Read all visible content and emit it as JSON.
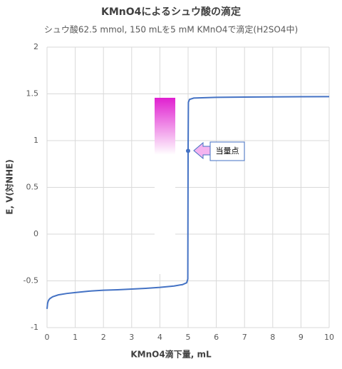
{
  "chart_data": {
    "type": "line",
    "title": "KMnO4によるシュウ酸の滴定",
    "subtitle": "シュウ酸62.5 mmol, 150 mLを5 mM KMnO4で滴定(H2SO4中)",
    "x_label": "KMnO4滴下量, mL",
    "y_label": "E, V(対NHE)",
    "x": [
      0,
      0.02,
      0.05,
      0.1,
      0.2,
      0.4,
      0.7,
      1,
      1.5,
      2,
      2.5,
      3,
      3.5,
      4,
      4.5,
      4.8,
      4.95,
      4.99,
      5,
      5.01,
      5.05,
      5.2,
      6,
      7,
      8,
      9,
      10
    ],
    "series": [
      {
        "color": "#4472c4",
        "values": [
          -0.8,
          -0.74,
          -0.71,
          -0.69,
          -0.67,
          -0.65,
          -0.635,
          -0.625,
          -0.61,
          -0.6,
          -0.595,
          -0.588,
          -0.58,
          -0.57,
          -0.555,
          -0.54,
          -0.52,
          -0.48,
          0.89,
          1.41,
          1.44,
          1.455,
          1.463,
          1.466,
          1.468,
          1.469,
          1.47
        ]
      }
    ],
    "annotation": {
      "label": "当量点",
      "x": 5,
      "y": 0.89
    },
    "xlim": [
      0,
      10
    ],
    "xticks": [
      0,
      1,
      2,
      3,
      4,
      5,
      6,
      7,
      8,
      9,
      10
    ],
    "ylim": [
      -1,
      2
    ],
    "yticks": [
      -1,
      -0.5,
      0,
      0.5,
      1,
      1.5,
      2
    ],
    "grid": true
  }
}
